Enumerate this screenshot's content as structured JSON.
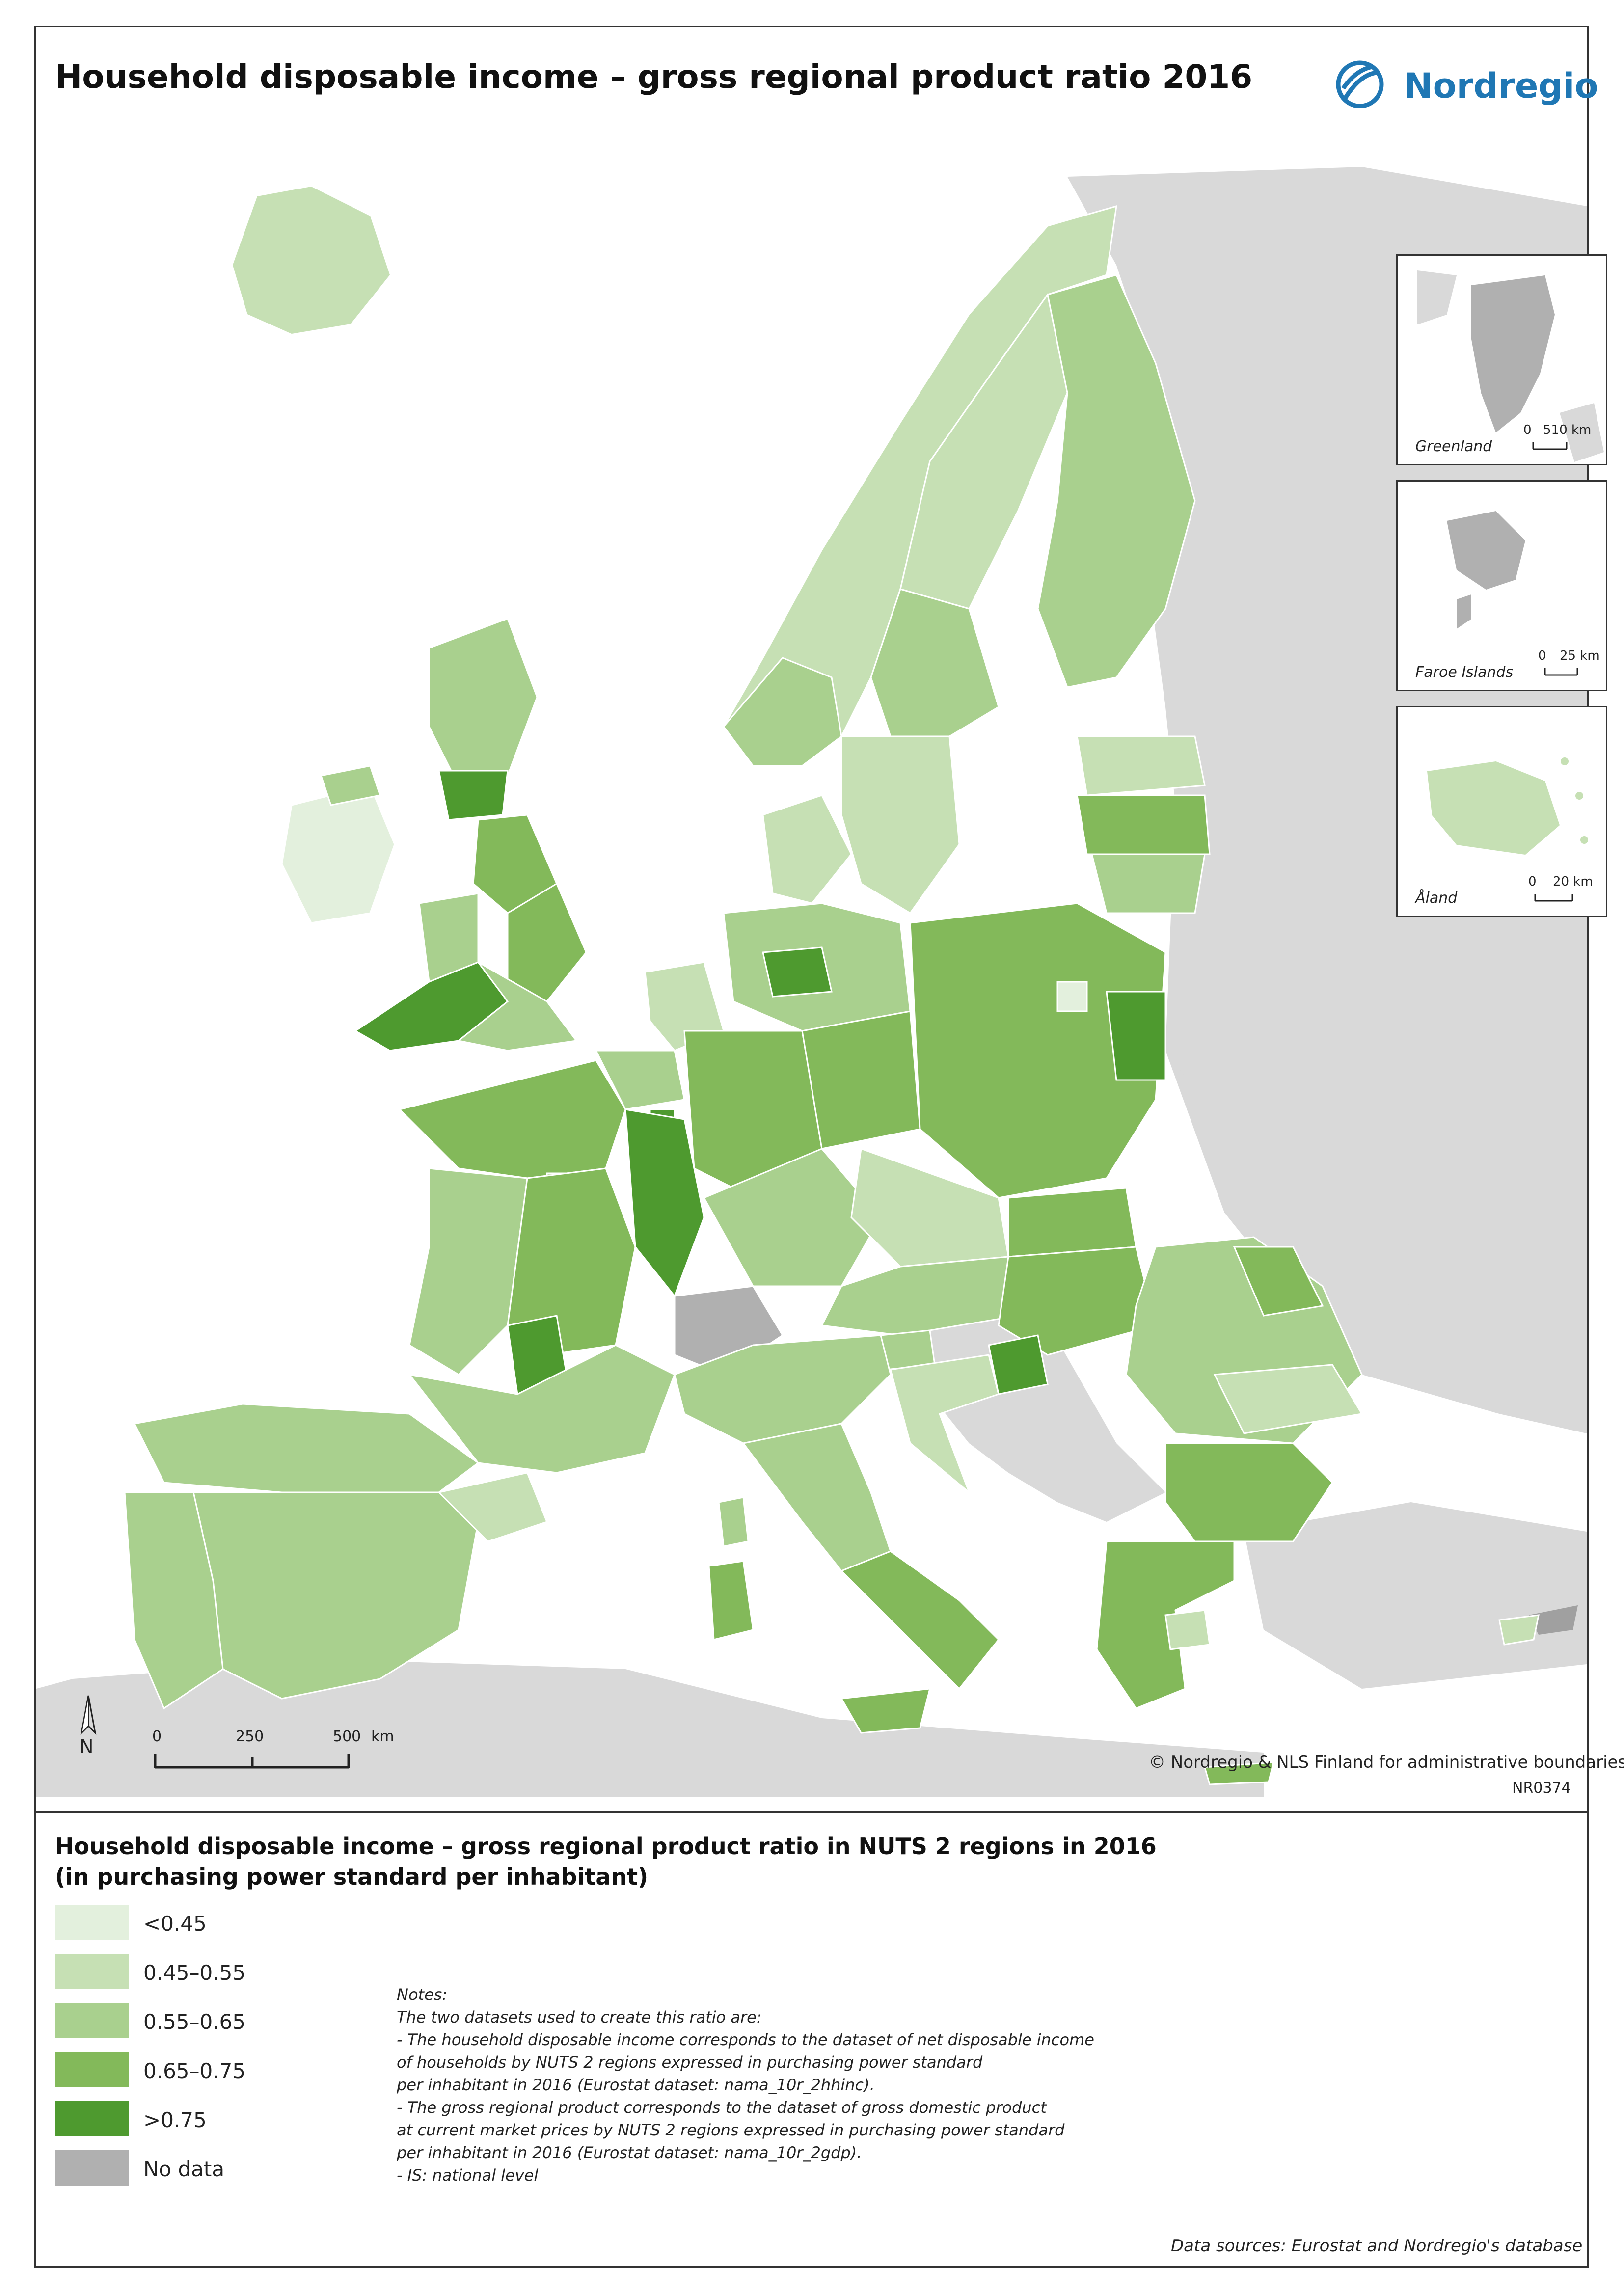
{
  "title": "Household disposable income – gross regional product ratio 2016",
  "logo": {
    "text": "Nordregio",
    "color": "#1f77b4"
  },
  "scale": {
    "ticks": [
      "0",
      "250",
      "500"
    ],
    "unit": "km"
  },
  "north_label": "N",
  "copyright": "© Nordregio & NLS Finland for administrative boundaries",
  "map_code": "NR0374",
  "insets": [
    {
      "name": "Greenland",
      "scale_zero": "0",
      "scale_value": "510 km"
    },
    {
      "name": "Faroe Islands",
      "scale_zero": "0",
      "scale_value": "25 km"
    },
    {
      "name": "Åland",
      "scale_zero": "0",
      "scale_value": "20 km"
    }
  ],
  "legend": {
    "title_line1": "Household disposable income – gross regional product ratio in NUTS 2 regions in 2016",
    "title_line2": "(in purchasing power standard per inhabitant)",
    "classes": [
      {
        "label": "<0.45",
        "color": "#e3f0dd"
      },
      {
        "label": "0.45–0.55",
        "color": "#c6e0b4"
      },
      {
        "label": "0.55–0.65",
        "color": "#a9d08e"
      },
      {
        "label": "0.65–0.75",
        "color": "#83b95a"
      },
      {
        "label": ">0.75",
        "color": "#4e9a2f"
      },
      {
        "label": "No data",
        "color": "#b0b0b0"
      }
    ]
  },
  "colors": {
    "sea": "#ffffff",
    "non_study_land": "#d9d9d9",
    "border": "#ffffff"
  },
  "notes": {
    "heading": "Notes:",
    "lines": [
      "The two datasets used to create this ratio are:",
      "- The household disposable income corresponds to the dataset of net disposable income",
      "of households by NUTS 2 regions expressed in purchasing power standard",
      "per inhabitant in 2016 (Eurostat dataset: nama_10r_2hhinc).",
      "- The gross regional product corresponds to the dataset of gross domestic product",
      "at current market prices by NUTS 2 regions expressed in purchasing power standard",
      "per inhabitant in 2016 (Eurostat dataset: nama_10r_2gdp).",
      "- IS: national level"
    ]
  },
  "data_sources": "Data sources: Eurostat and Nordregio's database"
}
